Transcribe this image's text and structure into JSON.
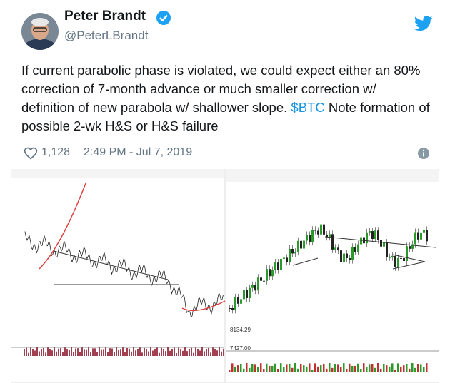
{
  "tweet": {
    "author": {
      "name": "Peter Brandt",
      "handle": "@PeterLBrandt"
    },
    "text": {
      "before": "If current parabolic phase is violated, we could expect either an 80% correction of 7-month advance or much smaller correction w/ definition of new parabola w/ shallower slope. ",
      "cashtag": "$BTC",
      "after": " Note formation of possible 2-wk H&S or H&S failure"
    },
    "likes": "1,128",
    "timestamp": "2:49 PM - Jul 7, 2019",
    "media": {
      "price_labels": [
        "8134.29",
        "7427.00"
      ]
    }
  }
}
